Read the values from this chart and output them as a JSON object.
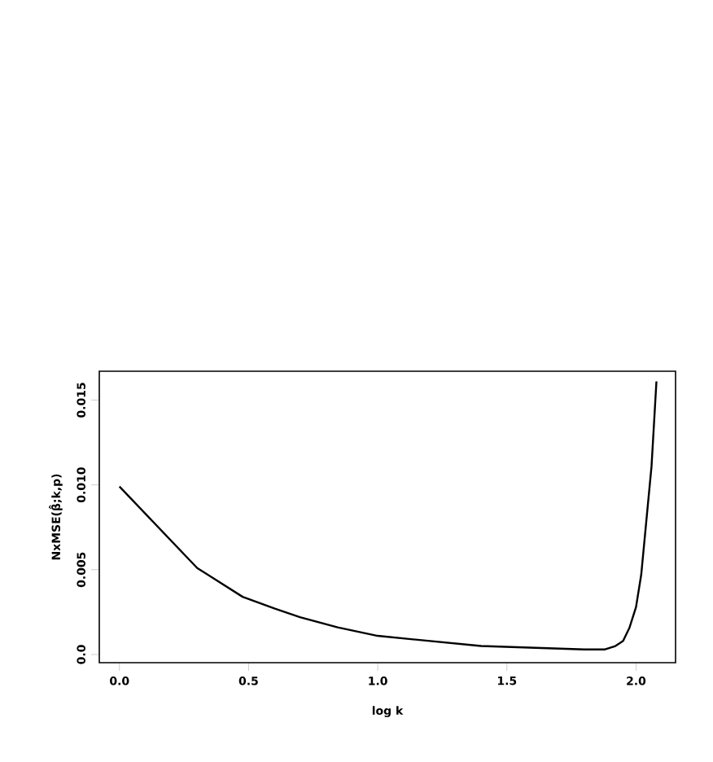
{
  "chart_data": {
    "type": "line",
    "xlabel": "log k",
    "ylabel": "NxMSE(β̂;k,p)",
    "x": [
      0.0,
      0.301,
      0.477,
      0.602,
      0.699,
      0.845,
      1.0,
      1.2,
      1.4,
      1.6,
      1.8,
      1.88,
      1.92,
      1.95,
      1.975,
      2.0,
      2.02,
      2.04,
      2.06,
      2.079
    ],
    "series": [
      {
        "color": "#000000",
        "values": [
          0.0099,
          0.0051,
          0.0034,
          0.0027,
          0.0022,
          0.0016,
          0.0011,
          0.0008,
          0.0005,
          0.0004,
          0.0003,
          0.0003,
          0.0005,
          0.0008,
          0.0016,
          0.0028,
          0.0047,
          0.0079,
          0.0111,
          0.0161
        ]
      }
    ],
    "xlim": [
      -0.078,
      2.153
    ],
    "ylim": [
      -0.00048,
      0.0167
    ],
    "xticks": [
      {
        "value": 0,
        "label": "0.0"
      },
      0.5,
      {
        "value": 1,
        "label": "1.0"
      },
      1.5,
      {
        "value": 2,
        "label": "2.0"
      }
    ],
    "yticks": [
      {
        "value": 0,
        "label": "0.0"
      },
      0.005,
      {
        "value": 0.01,
        "label": "0.010"
      },
      0.015
    ],
    "grid": false,
    "marker": "none",
    "line_style": "solid"
  }
}
